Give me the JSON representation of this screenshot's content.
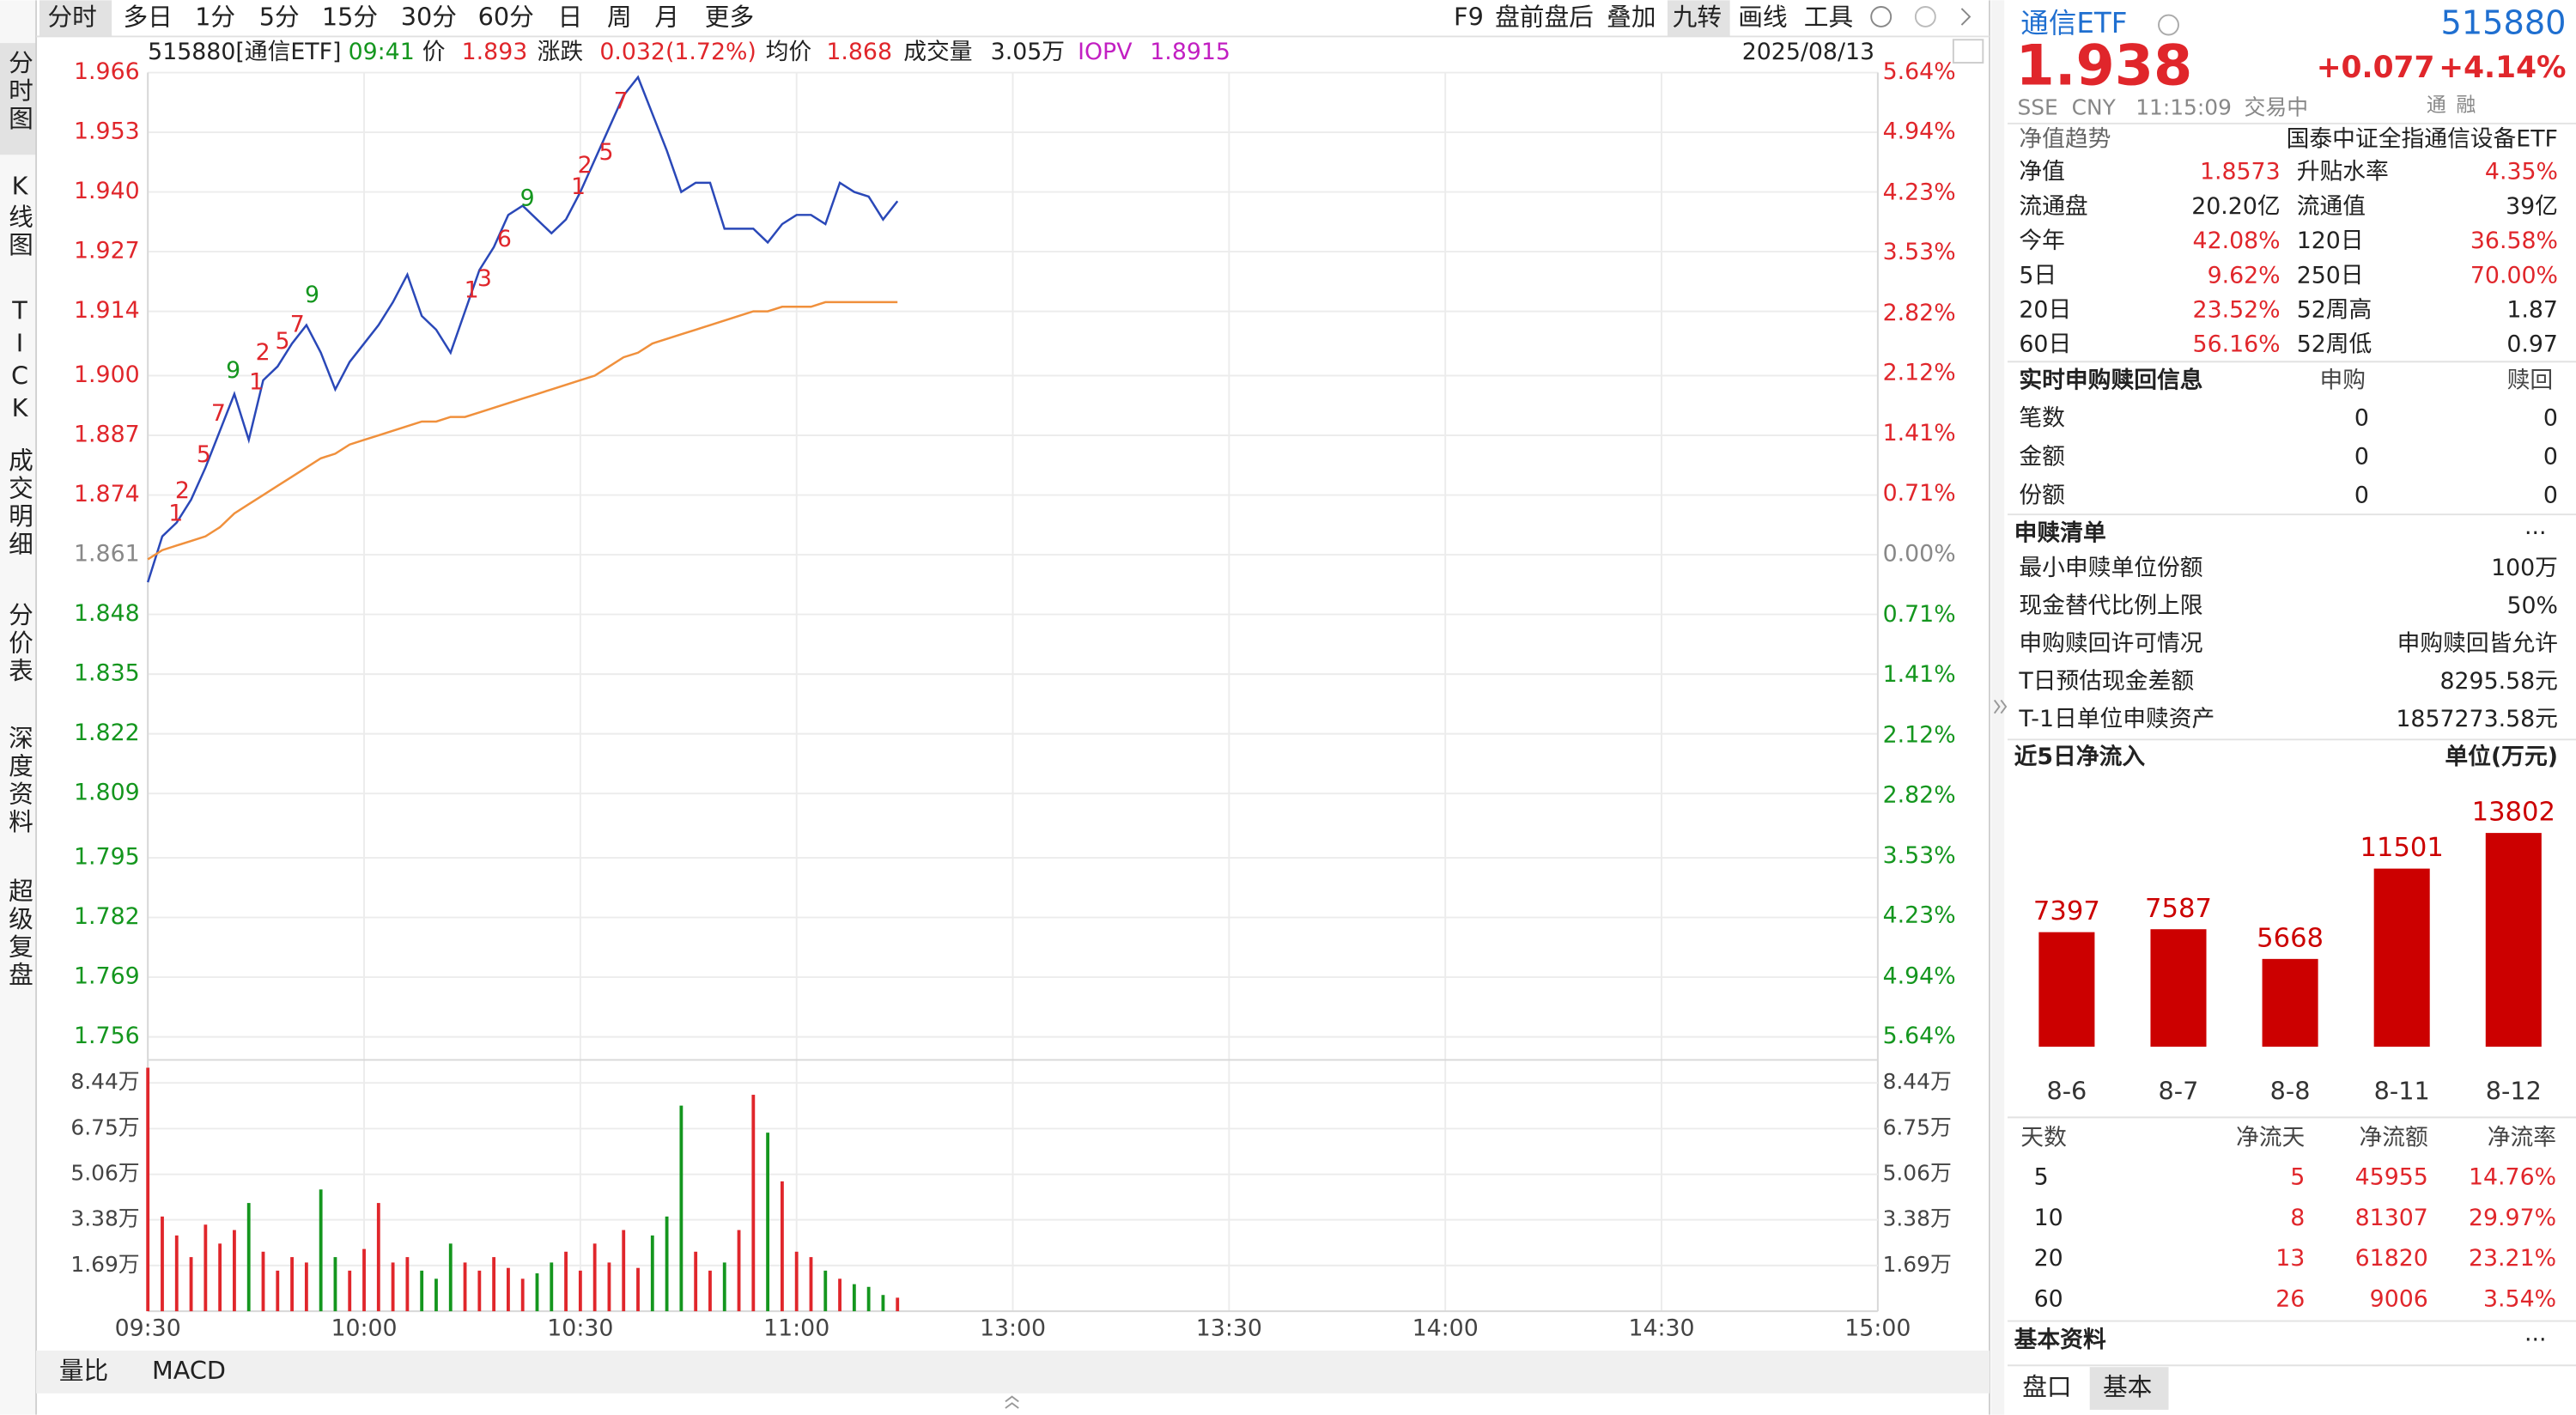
{
  "toolbar": {
    "periods": [
      "分时",
      "多日",
      "1分",
      "5分",
      "15分",
      "30分",
      "60分",
      "日",
      "周",
      "月",
      "更多"
    ],
    "tools": [
      "F9",
      "盘前盘后",
      "叠加",
      "九转",
      "画线",
      "工具"
    ]
  },
  "side_tabs": [
    "分时图",
    "K线图",
    "TICK",
    "成交明细",
    "分价表",
    "深度资料",
    "超级复盘"
  ],
  "info": {
    "code": "515880[通信ETF]",
    "time": "09:41",
    "price_label": "价",
    "price": "1.893",
    "change_label": "涨跌",
    "change": "0.032(1.72%)",
    "avg_label": "均价",
    "avg": "1.868",
    "volume_label": "成交量",
    "volume": "3.05万",
    "iopv_label": "IOPV",
    "iopv": "1.8915",
    "date": "2025/08/13"
  },
  "chart_data": {
    "type": "line",
    "x": [
      "09:30",
      "09:32",
      "09:34",
      "09:36",
      "09:38",
      "09:40",
      "09:42",
      "09:44",
      "09:46",
      "09:48",
      "09:50",
      "09:52",
      "09:54",
      "09:56",
      "09:58",
      "10:00",
      "10:02",
      "10:04",
      "10:06",
      "10:08",
      "10:10",
      "10:12",
      "10:14",
      "10:16",
      "10:18",
      "10:20",
      "10:22",
      "10:24",
      "10:26",
      "10:28",
      "10:30",
      "10:32",
      "10:34",
      "10:36",
      "10:38",
      "10:40",
      "10:42",
      "10:44",
      "10:46",
      "10:48",
      "10:50",
      "10:52",
      "10:54",
      "10:56",
      "10:58",
      "11:00",
      "11:02",
      "11:04",
      "11:06",
      "11:08",
      "11:10",
      "11:12",
      "11:14"
    ],
    "series": [
      {
        "color": "#2a48b8",
        "values": [
          1.855,
          1.865,
          1.868,
          1.873,
          1.88,
          1.888,
          1.896,
          1.886,
          1.899,
          1.902,
          1.907,
          1.911,
          1.905,
          1.897,
          1.903,
          1.907,
          1.911,
          1.916,
          1.922,
          1.913,
          1.91,
          1.905,
          1.914,
          1.923,
          1.928,
          1.935,
          1.937,
          1.934,
          1.931,
          1.934,
          1.94,
          1.947,
          1.954,
          1.961,
          1.965,
          1.957,
          1.949,
          1.94,
          1.942,
          1.942,
          1.932,
          1.932,
          1.932,
          1.929,
          1.933,
          1.935,
          1.935,
          1.933,
          1.942,
          1.94,
          1.939,
          1.934,
          1.938
        ]
      },
      {
        "color": "#f0903c",
        "values": [
          1.86,
          1.862,
          1.863,
          1.864,
          1.865,
          1.867,
          1.87,
          1.872,
          1.874,
          1.876,
          1.878,
          1.88,
          1.882,
          1.883,
          1.885,
          1.886,
          1.887,
          1.888,
          1.889,
          1.89,
          1.89,
          1.891,
          1.891,
          1.892,
          1.893,
          1.894,
          1.895,
          1.896,
          1.897,
          1.898,
          1.899,
          1.9,
          1.902,
          1.904,
          1.905,
          1.907,
          1.908,
          1.909,
          1.91,
          1.911,
          1.912,
          1.913,
          1.914,
          1.914,
          1.915,
          1.915,
          1.915,
          1.916,
          1.916,
          1.916,
          1.916,
          1.916,
          1.916
        ]
      }
    ],
    "ylim": [
      1.756,
      1.966
    ],
    "yticks": [
      1.966,
      1.953,
      {
        "value": 1.94,
        "label": "1.940"
      },
      1.927,
      1.914,
      {
        "value": 1.9,
        "label": "1.900"
      },
      1.887,
      1.874,
      1.861,
      1.848,
      1.835,
      1.822,
      1.809,
      1.795,
      1.782,
      1.769,
      1.756
    ],
    "y2lim": [
      -5.64,
      5.64
    ],
    "y2ticks": [
      {
        "value": 5.64,
        "label": "5.64%"
      },
      {
        "value": 4.94,
        "label": "4.94%"
      },
      {
        "value": 4.23,
        "label": "4.23%"
      },
      {
        "value": 3.53,
        "label": "3.53%"
      },
      {
        "value": 2.82,
        "label": "2.82%"
      },
      {
        "value": 2.12,
        "label": "2.12%"
      },
      {
        "value": 1.41,
        "label": "1.41%"
      },
      {
        "value": 0.71,
        "label": "0.71%"
      },
      {
        "value": 0,
        "label": "0.00%"
      },
      {
        "value": -0.71,
        "label": "0.71%"
      },
      {
        "value": -1.41,
        "label": "1.41%"
      },
      {
        "value": -2.12,
        "label": "2.12%"
      },
      {
        "value": -2.82,
        "label": "2.82%"
      },
      {
        "value": -3.53,
        "label": "3.53%"
      },
      {
        "value": -4.23,
        "label": "4.23%"
      },
      {
        "value": -4.94,
        "label": "4.94%"
      },
      {
        "value": -5.64,
        "label": "5.64%"
      }
    ],
    "xticks": [
      "09:30",
      "10:00",
      "10:30",
      "11:00",
      "13:00",
      "13:30",
      "14:00",
      "14:30",
      "15:00"
    ],
    "grid": true,
    "up_color": "#e0262b",
    "down_color": "#14961e",
    "volume": {
      "values": [
        9.0,
        3.5,
        2.8,
        2.0,
        3.2,
        2.5,
        3.0,
        4.0,
        2.2,
        1.5,
        2.0,
        1.8,
        4.5,
        2.0,
        1.5,
        2.3,
        4.0,
        1.8,
        2.0,
        1.5,
        1.2,
        2.5,
        1.8,
        1.5,
        2.0,
        1.6,
        1.2,
        1.4,
        1.8,
        2.2,
        1.5,
        2.5,
        1.8,
        3.0,
        1.6,
        2.8,
        3.5,
        7.6,
        2.2,
        1.5,
        1.8,
        3.0,
        8.0,
        6.6,
        4.8,
        2.2,
        2.0,
        1.5,
        1.2,
        1.0,
        0.9,
        0.6,
        0.5
      ],
      "ylim": [
        0,
        9.29
      ],
      "yticks": [
        {
          "value": 8.44,
          "label": "8.44万"
        },
        {
          "value": 6.75,
          "label": "6.75万"
        },
        {
          "value": 5.06,
          "label": "5.06万"
        },
        {
          "value": 3.38,
          "label": "3.38万"
        },
        {
          "value": 1.69,
          "label": "1.69万"
        }
      ]
    },
    "annotations": [
      {
        "text": "1",
        "color": "#e0262b"
      },
      {
        "text": "2",
        "color": "#e0262b"
      },
      {
        "text": "5",
        "color": "#e0262b"
      },
      {
        "text": "7",
        "color": "#e0262b"
      },
      {
        "text": "9",
        "color": "#14961e"
      },
      {
        "text": "1",
        "color": "#e0262b"
      },
      {
        "text": "2",
        "color": "#e0262b"
      },
      {
        "text": "5",
        "color": "#e0262b"
      },
      {
        "text": "7",
        "color": "#e0262b"
      },
      {
        "text": "9",
        "color": "#14961e"
      },
      {
        "text": "1",
        "color": "#e0262b"
      },
      {
        "text": "3",
        "color": "#e0262b"
      },
      {
        "text": "6",
        "color": "#e0262b"
      },
      {
        "text": "9",
        "color": "#14961e"
      },
      {
        "text": "1",
        "color": "#e0262b"
      },
      {
        "text": "2",
        "color": "#e0262b"
      },
      {
        "text": "5",
        "color": "#e0262b"
      },
      {
        "text": "7",
        "color": "#e0262b"
      }
    ]
  },
  "bottom_tabs": [
    "量比",
    "MACD"
  ],
  "panel": {
    "name": "通信ETF",
    "code": "515880",
    "price": "1.938",
    "change": "+0.077",
    "change_pct": "+4.14%",
    "market": "SSE",
    "currency": "CNY",
    "time": "11:15:09",
    "status": "交易中",
    "badges": [
      "通",
      "融"
    ],
    "nav_trend": "净值趋势",
    "fund_name": "国泰中证全指通信设备ETF",
    "stats": [
      [
        "净值",
        "1.8573",
        "升贴水率",
        "4.35%"
      ],
      [
        "流通盘",
        "20.20亿",
        "流通值",
        "39亿"
      ],
      [
        "今年",
        "42.08%",
        "120日",
        "36.58%"
      ],
      [
        "5日",
        "9.62%",
        "250日",
        "70.00%"
      ],
      [
        "20日",
        "23.52%",
        "52周高",
        "1.87"
      ],
      [
        "60日",
        "56.16%",
        "52周低",
        "0.97"
      ]
    ],
    "subscription": {
      "title": "实时申购赎回信息",
      "headers": [
        "申购",
        "赎回"
      ],
      "rows": [
        [
          "笔数",
          "0",
          "0"
        ],
        [
          "金额",
          "0",
          "0"
        ],
        [
          "份额",
          "0",
          "0"
        ]
      ]
    },
    "list": {
      "title": "申赎清单",
      "more": "···",
      "rows": [
        [
          "最小申赎单位份额",
          "100万"
        ],
        [
          "现金替代比例上限",
          "50%"
        ],
        [
          "申购赎回许可情况",
          "申购赎回皆允许"
        ],
        [
          "T日预估现金差额",
          "8295.58元"
        ],
        [
          "T-1日单位申赎资产",
          "1857273.58元"
        ]
      ]
    },
    "flow": {
      "title": "近5日净流入",
      "unit": "单位(万元)",
      "chart": {
        "type": "bar",
        "categories": [
          "8-6",
          "8-7",
          "8-8",
          "8-11",
          "8-12"
        ],
        "values": [
          7397,
          7587,
          5668,
          11501,
          13802
        ],
        "color": "#cc0000",
        "ylim": [
          0,
          14000
        ]
      },
      "table": {
        "headers": [
          "天数",
          "净流天",
          "净流额",
          "净流率"
        ],
        "rows": [
          [
            "5",
            "5",
            "45955",
            "14.76%"
          ],
          [
            "10",
            "8",
            "81307",
            "29.97%"
          ],
          [
            "20",
            "13",
            "61820",
            "23.21%"
          ],
          [
            "60",
            "26",
            "9006",
            "3.54%"
          ]
        ]
      }
    },
    "basic": {
      "title": "基本资料",
      "more": "···"
    },
    "tabs": [
      "盘口",
      "基本"
    ]
  }
}
